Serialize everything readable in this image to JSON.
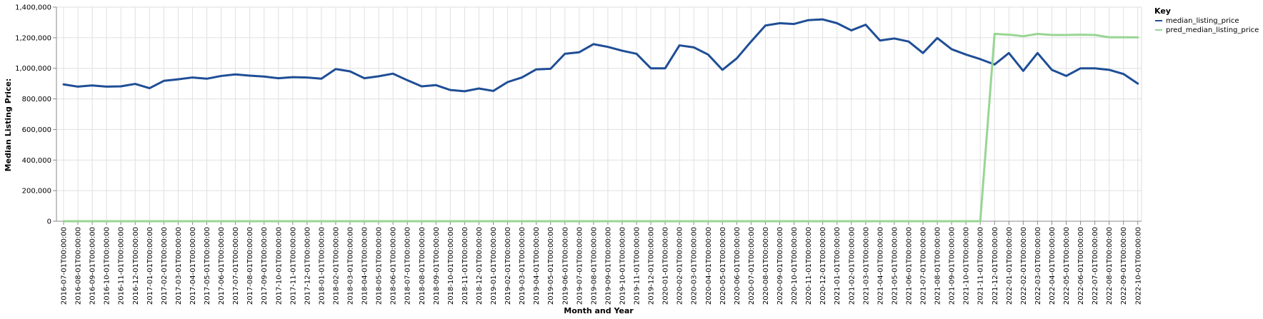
{
  "chart_data": {
    "type": "line",
    "xlabel": "Month and Year",
    "ylabel": "Median Listing Price:",
    "ylim": [
      0,
      1400000
    ],
    "yticks": [
      0,
      200000,
      400000,
      600000,
      800000,
      1000000,
      1200000,
      1400000
    ],
    "ytick_labels": [
      "0",
      "200,000",
      "400,000",
      "600,000",
      "800,000",
      "1,000,000",
      "1,200,000",
      "1,400,000"
    ],
    "grid": true,
    "legend_title": "Key",
    "legend_position": "top-right",
    "x": [
      "2016-07-01T00:00:00",
      "2016-08-01T00:00:00",
      "2016-09-01T00:00:00",
      "2016-10-01T00:00:00",
      "2016-11-01T00:00:00",
      "2016-12-01T00:00:00",
      "2017-01-01T00:00:00",
      "2017-02-01T00:00:00",
      "2017-03-01T00:00:00",
      "2017-04-01T00:00:00",
      "2017-05-01T00:00:00",
      "2017-06-01T00:00:00",
      "2017-07-01T00:00:00",
      "2017-08-01T00:00:00",
      "2017-09-01T00:00:00",
      "2017-10-01T00:00:00",
      "2017-11-01T00:00:00",
      "2017-12-01T00:00:00",
      "2018-01-01T00:00:00",
      "2018-02-01T00:00:00",
      "2018-03-01T00:00:00",
      "2018-04-01T00:00:00",
      "2018-05-01T00:00:00",
      "2018-06-01T00:00:00",
      "2018-07-01T00:00:00",
      "2018-08-01T00:00:00",
      "2018-09-01T00:00:00",
      "2018-10-01T00:00:00",
      "2018-11-01T00:00:00",
      "2018-12-01T00:00:00",
      "2019-01-01T00:00:00",
      "2019-02-01T00:00:00",
      "2019-03-01T00:00:00",
      "2019-04-01T00:00:00",
      "2019-05-01T00:00:00",
      "2019-06-01T00:00:00",
      "2019-07-01T00:00:00",
      "2019-08-01T00:00:00",
      "2019-09-01T00:00:00",
      "2019-10-01T00:00:00",
      "2019-11-01T00:00:00",
      "2019-12-01T00:00:00",
      "2020-01-01T00:00:00",
      "2020-02-01T00:00:00",
      "2020-03-01T00:00:00",
      "2020-04-01T00:00:00",
      "2020-05-01T00:00:00",
      "2020-06-01T00:00:00",
      "2020-07-01T00:00:00",
      "2020-08-01T00:00:00",
      "2020-09-01T00:00:00",
      "2020-10-01T00:00:00",
      "2020-11-01T00:00:00",
      "2020-12-01T00:00:00",
      "2021-01-01T00:00:00",
      "2021-02-01T00:00:00",
      "2021-03-01T00:00:00",
      "2021-04-01T00:00:00",
      "2021-05-01T00:00:00",
      "2021-06-01T00:00:00",
      "2021-07-01T00:00:00",
      "2021-08-01T00:00:00",
      "2021-09-01T00:00:00",
      "2021-10-01T00:00:00",
      "2021-11-01T00:00:00",
      "2021-12-01T00:00:00",
      "2022-01-01T00:00:00",
      "2022-02-01T00:00:00",
      "2022-03-01T00:00:00",
      "2022-04-01T00:00:00",
      "2022-05-01T00:00:00",
      "2022-06-01T00:00:00",
      "2022-07-01T00:00:00",
      "2022-08-01T00:00:00",
      "2022-09-01T00:00:00",
      "2022-10-01T00:00:00"
    ],
    "series": [
      {
        "name": "median_listing_price",
        "color": "#1f4e96",
        "values": [
          895000,
          880000,
          888000,
          880000,
          882000,
          898000,
          870000,
          918000,
          928000,
          940000,
          932000,
          950000,
          960000,
          952000,
          946000,
          935000,
          942000,
          940000,
          932000,
          995000,
          980000,
          935000,
          948000,
          965000,
          922000,
          882000,
          890000,
          858000,
          850000,
          868000,
          852000,
          910000,
          940000,
          993000,
          997000,
          1095000,
          1105000,
          1158000,
          1140000,
          1115000,
          1095000,
          1000000,
          1000000,
          1150000,
          1137000,
          1090000,
          990000,
          1065000,
          1175000,
          1280000,
          1295000,
          1290000,
          1315000,
          1320000,
          1295000,
          1248000,
          1285000,
          1182000,
          1195000,
          1175000,
          1100000,
          1198000,
          1125000,
          1090000,
          1060000,
          1025000,
          1100000,
          983000,
          1100000,
          990000,
          950000,
          1000000,
          1000000,
          990000,
          963000,
          900000
        ]
      },
      {
        "name": "pred_median_listing_price",
        "color": "#98d594",
        "values": [
          0,
          0,
          0,
          0,
          0,
          0,
          0,
          0,
          0,
          0,
          0,
          0,
          0,
          0,
          0,
          0,
          0,
          0,
          0,
          0,
          0,
          0,
          0,
          0,
          0,
          0,
          0,
          0,
          0,
          0,
          0,
          0,
          0,
          0,
          0,
          0,
          0,
          0,
          0,
          0,
          0,
          0,
          0,
          0,
          0,
          0,
          0,
          0,
          0,
          0,
          0,
          0,
          0,
          0,
          0,
          0,
          0,
          0,
          0,
          0,
          0,
          0,
          0,
          0,
          0,
          1225000,
          1220000,
          1210000,
          1225000,
          1218000,
          1218000,
          1220000,
          1218000,
          1203000,
          1203000,
          1202000
        ]
      }
    ]
  }
}
